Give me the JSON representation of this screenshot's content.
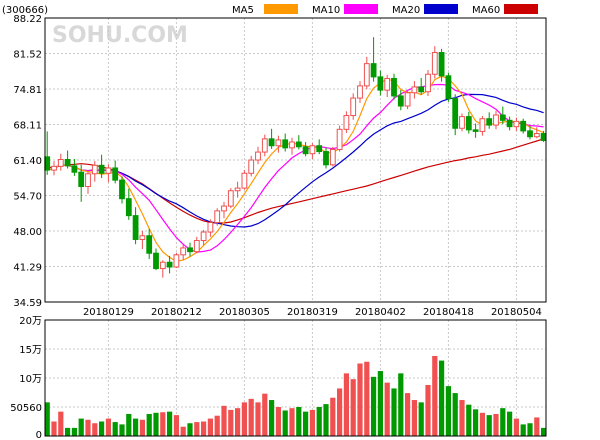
{
  "header": {
    "stock_code": "(300666)",
    "watermark": "SOHU.COM",
    "legend": [
      {
        "label": "MA5",
        "color": "#ff9900"
      },
      {
        "label": "MA10",
        "color": "#ff00ff"
      },
      {
        "label": "MA20",
        "color": "#0000cc"
      },
      {
        "label": "MA60",
        "color": "#cc0000"
      }
    ]
  },
  "colors": {
    "up": "#f05050",
    "down": "#009900",
    "frame": "#000000",
    "grid": "#c8c8c8"
  },
  "chart_data": [
    {
      "type": "candlestick",
      "ylim": [
        34.59,
        88.22
      ],
      "y_ticks": [
        "88.22",
        "81.52",
        "74.81",
        "68.11",
        "61.40",
        "54.70",
        "48.00",
        "41.29",
        "34.59"
      ],
      "x_ticks": [
        {
          "label": "20180129",
          "index": 9
        },
        {
          "label": "20180212",
          "index": 19
        },
        {
          "label": "20180305",
          "index": 29
        },
        {
          "label": "20180319",
          "index": 39
        },
        {
          "label": "20180402",
          "index": 49
        },
        {
          "label": "20180418",
          "index": 59
        },
        {
          "label": "20180504",
          "index": 69
        }
      ],
      "ohlc": [
        [
          62.0,
          66.8,
          58.6,
          59.5
        ],
        [
          59.5,
          61.2,
          58.5,
          60.2
        ],
        [
          60.2,
          62.6,
          59.4,
          61.5
        ],
        [
          61.5,
          63.2,
          59.8,
          60.3
        ],
        [
          60.3,
          61.6,
          58.4,
          59.1
        ],
        [
          59.1,
          60.5,
          53.5,
          56.4
        ],
        [
          56.4,
          59.2,
          55.0,
          58.8
        ],
        [
          58.8,
          61.2,
          57.3,
          60.4
        ],
        [
          60.4,
          62.4,
          58.0,
          58.9
        ],
        [
          58.9,
          60.6,
          57.2,
          59.9
        ],
        [
          59.9,
          61.3,
          57.0,
          57.6
        ],
        [
          57.6,
          58.3,
          53.2,
          54.1
        ],
        [
          54.1,
          56.0,
          50.1,
          50.9
        ],
        [
          50.9,
          52.5,
          45.5,
          46.4
        ],
        [
          46.4,
          48.0,
          44.6,
          47.1
        ],
        [
          47.1,
          48.4,
          42.7,
          43.8
        ],
        [
          43.8,
          44.7,
          40.6,
          40.9
        ],
        [
          40.9,
          42.5,
          39.2,
          42.1
        ],
        [
          42.1,
          43.3,
          40.0,
          41.2
        ],
        [
          41.2,
          43.9,
          41.0,
          43.5
        ],
        [
          43.5,
          45.4,
          42.5,
          44.8
        ],
        [
          44.8,
          45.8,
          43.2,
          44.1
        ],
        [
          44.1,
          46.9,
          43.8,
          46.2
        ],
        [
          46.2,
          48.2,
          45.3,
          47.8
        ],
        [
          47.8,
          50.2,
          46.9,
          49.6
        ],
        [
          49.6,
          52.3,
          49.0,
          51.8
        ],
        [
          51.8,
          53.5,
          50.4,
          52.7
        ],
        [
          52.7,
          56.1,
          52.3,
          55.6
        ],
        [
          55.6,
          57.3,
          54.3,
          56.1
        ],
        [
          56.1,
          59.5,
          55.8,
          58.9
        ],
        [
          58.9,
          62.2,
          58.3,
          61.4
        ],
        [
          61.4,
          63.9,
          60.6,
          62.9
        ],
        [
          62.9,
          66.2,
          62.1,
          65.4
        ],
        [
          65.4,
          67.3,
          63.5,
          64.1
        ],
        [
          64.1,
          66.0,
          62.8,
          65.2
        ],
        [
          65.2,
          66.4,
          63.0,
          63.7
        ],
        [
          63.7,
          65.6,
          62.4,
          64.8
        ],
        [
          64.8,
          66.1,
          63.4,
          63.9
        ],
        [
          63.9,
          64.8,
          62.1,
          62.6
        ],
        [
          62.6,
          64.6,
          61.6,
          64.1
        ],
        [
          64.1,
          65.3,
          62.5,
          63.0
        ],
        [
          63.0,
          63.8,
          59.8,
          60.5
        ],
        [
          60.5,
          63.9,
          60.2,
          63.4
        ],
        [
          63.4,
          67.9,
          63.0,
          67.2
        ],
        [
          67.2,
          70.6,
          66.5,
          69.8
        ],
        [
          69.8,
          74.0,
          69.0,
          73.1
        ],
        [
          73.1,
          76.3,
          72.2,
          75.4
        ],
        [
          75.4,
          80.9,
          74.8,
          79.6
        ],
        [
          79.6,
          84.6,
          76.2,
          77.1
        ],
        [
          77.1,
          78.3,
          73.6,
          74.6
        ],
        [
          74.6,
          77.5,
          73.3,
          76.8
        ],
        [
          76.8,
          77.7,
          72.8,
          73.5
        ],
        [
          73.5,
          74.6,
          70.8,
          71.6
        ],
        [
          71.6,
          74.7,
          71.0,
          74.1
        ],
        [
          74.1,
          76.3,
          73.0,
          75.2
        ],
        [
          75.2,
          76.9,
          73.8,
          74.3
        ],
        [
          74.3,
          78.4,
          73.5,
          77.6
        ],
        [
          77.6,
          82.9,
          76.8,
          81.7
        ],
        [
          81.7,
          82.4,
          76.2,
          77.3
        ],
        [
          77.3,
          77.9,
          72.4,
          73.0
        ],
        [
          73.0,
          73.8,
          66.1,
          67.4
        ],
        [
          67.4,
          70.2,
          66.8,
          69.6
        ],
        [
          69.6,
          70.5,
          66.4,
          67.1
        ],
        [
          67.1,
          68.3,
          65.6,
          66.8
        ],
        [
          66.8,
          69.7,
          66.0,
          69.2
        ],
        [
          69.2,
          70.4,
          67.3,
          68.0
        ],
        [
          68.0,
          70.7,
          67.2,
          69.9
        ],
        [
          69.9,
          71.5,
          68.2,
          68.9
        ],
        [
          68.9,
          69.6,
          67.0,
          67.7
        ],
        [
          67.7,
          69.4,
          66.9,
          68.7
        ],
        [
          68.7,
          69.2,
          66.4,
          66.9
        ],
        [
          66.9,
          67.8,
          65.3,
          65.8
        ],
        [
          65.8,
          67.6,
          65.5,
          66.4
        ],
        [
          66.4,
          66.9,
          64.8,
          65.1
        ]
      ],
      "ma60": [
        59.9,
        60.1,
        60.3,
        60.5,
        60.6,
        60.7,
        60.6,
        60.4,
        60.1,
        59.8,
        59.4,
        58.9,
        58.3,
        57.6,
        56.9,
        56.0,
        55.1,
        54.2,
        53.3,
        52.5,
        51.7,
        51.0,
        50.4,
        49.9,
        49.6,
        49.5,
        49.5,
        49.7,
        50.1,
        50.5,
        51.0,
        51.5,
        51.9,
        52.3,
        52.6,
        52.9,
        53.2,
        53.5,
        53.8,
        54.1,
        54.4,
        54.7,
        55.0,
        55.3,
        55.6,
        55.9,
        56.2,
        56.5,
        56.9,
        57.3,
        57.7,
        58.1,
        58.5,
        58.9,
        59.3,
        59.7,
        60.1,
        60.4,
        60.7,
        61.0,
        61.3,
        61.5,
        61.8,
        62.0,
        62.3,
        62.5,
        62.8,
        63.1,
        63.4,
        63.8,
        64.2,
        64.6,
        65.0,
        65.4
      ]
    },
    {
      "type": "bar",
      "title": "volume",
      "ylim": [
        0,
        200000
      ],
      "y_ticks": [
        "20万",
        "15万",
        "10万",
        "50560",
        "0"
      ],
      "values": [
        58000,
        25000,
        42000,
        14000,
        14000,
        30000,
        28000,
        22000,
        25000,
        30000,
        24000,
        20000,
        38000,
        30000,
        28000,
        38000,
        40000,
        41000,
        42000,
        36000,
        16000,
        22000,
        24000,
        25000,
        30000,
        35000,
        52000,
        45000,
        48000,
        58000,
        64000,
        58000,
        73000,
        62000,
        50000,
        44000,
        48000,
        50000,
        42000,
        45000,
        50000,
        55000,
        66000,
        82000,
        108000,
        98000,
        125000,
        128000,
        102000,
        112000,
        92000,
        82000,
        108000,
        74000,
        62000,
        58000,
        88000,
        138000,
        130000,
        86000,
        74000,
        62000,
        54000,
        46000,
        40000,
        36000,
        38000,
        48000,
        42000,
        30000,
        20000,
        22000,
        32000,
        14000
      ]
    }
  ]
}
